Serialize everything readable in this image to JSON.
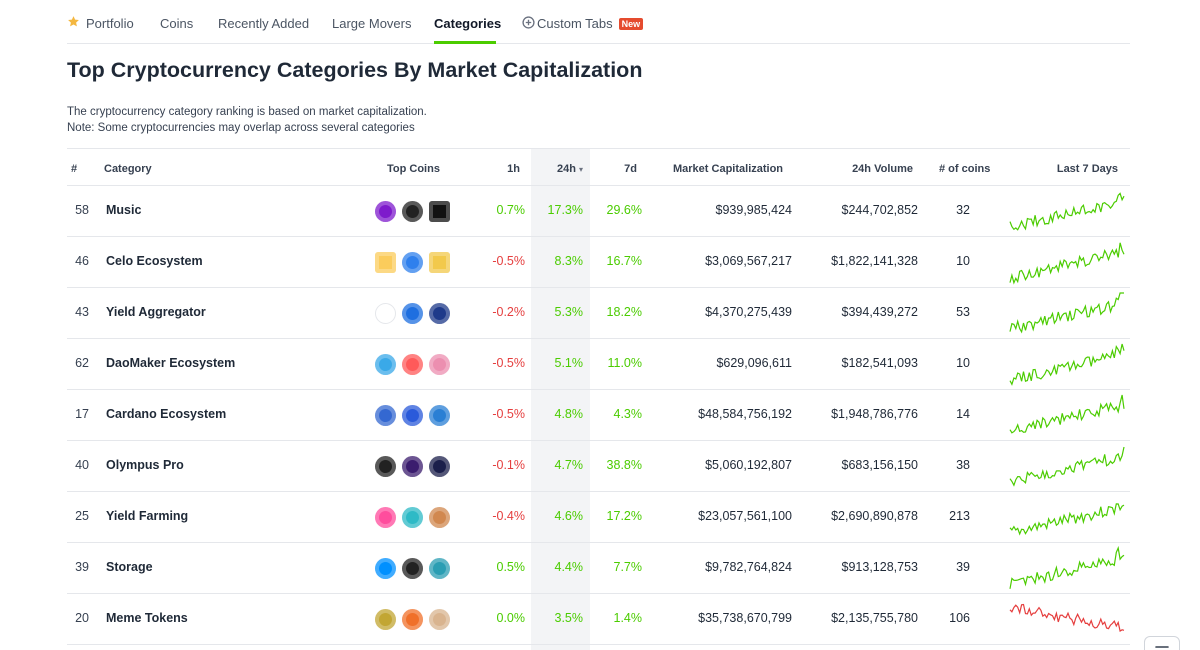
{
  "tabs": [
    {
      "label": "Portfolio",
      "icon": "star-icon"
    },
    {
      "label": "Coins"
    },
    {
      "label": "Recently Added"
    },
    {
      "label": "Large Movers"
    },
    {
      "label": "Categories",
      "active": true
    },
    {
      "label": "Custom Tabs",
      "icon": "plus-circle-icon",
      "badge": "New"
    }
  ],
  "page": {
    "title": "Top Cryptocurrency Categories By Market Capitalization",
    "description_line1": "The cryptocurrency category ranking is based on market capitalization.",
    "description_line2": "Note: Some cryptocurrencies may overlap across several categories"
  },
  "table": {
    "headers": {
      "rank": "#",
      "category": "Category",
      "top_coins": "Top Coins",
      "h1": "1h",
      "h24": "24h",
      "d7": "7d",
      "market_cap": "Market Capitalization",
      "volume": "24h Volume",
      "num_coins": "# of coins",
      "last7": "Last 7 Days"
    },
    "rows": [
      {
        "rank": "58",
        "category": "Music",
        "h1": "0.7%",
        "h24": "17.3%",
        "d7": "29.6%",
        "market_cap": "$939,985,424",
        "volume": "$244,702,852",
        "num_coins": "32",
        "trend": "up"
      },
      {
        "rank": "46",
        "category": "Celo Ecosystem",
        "h1": "-0.5%",
        "h24": "8.3%",
        "d7": "16.7%",
        "market_cap": "$3,069,567,217",
        "volume": "$1,822,141,328",
        "num_coins": "10",
        "trend": "up"
      },
      {
        "rank": "43",
        "category": "Yield Aggregator",
        "h1": "-0.2%",
        "h24": "5.3%",
        "d7": "18.2%",
        "market_cap": "$4,370,275,439",
        "volume": "$394,439,272",
        "num_coins": "53",
        "trend": "up"
      },
      {
        "rank": "62",
        "category": "DaoMaker Ecosystem",
        "h1": "-0.5%",
        "h24": "5.1%",
        "d7": "11.0%",
        "market_cap": "$629,096,611",
        "volume": "$182,541,093",
        "num_coins": "10",
        "trend": "up"
      },
      {
        "rank": "17",
        "category": "Cardano Ecosystem",
        "h1": "-0.5%",
        "h24": "4.8%",
        "d7": "4.3%",
        "market_cap": "$48,584,756,192",
        "volume": "$1,948,786,776",
        "num_coins": "14",
        "trend": "up"
      },
      {
        "rank": "40",
        "category": "Olympus Pro",
        "h1": "-0.1%",
        "h24": "4.7%",
        "d7": "38.8%",
        "market_cap": "$5,060,192,807",
        "volume": "$683,156,150",
        "num_coins": "38",
        "trend": "up"
      },
      {
        "rank": "25",
        "category": "Yield Farming",
        "h1": "-0.4%",
        "h24": "4.6%",
        "d7": "17.2%",
        "market_cap": "$23,057,561,100",
        "volume": "$2,690,890,878",
        "num_coins": "213",
        "trend": "up"
      },
      {
        "rank": "39",
        "category": "Storage",
        "h1": "0.5%",
        "h24": "4.4%",
        "d7": "7.7%",
        "market_cap": "$9,782,764,824",
        "volume": "$913,128,753",
        "num_coins": "39",
        "trend": "up"
      },
      {
        "rank": "20",
        "category": "Meme Tokens",
        "h1": "0.0%",
        "h24": "3.5%",
        "d7": "1.4%",
        "market_cap": "$35,738,670,799",
        "volume": "$2,135,755,780",
        "num_coins": "106",
        "trend": "down"
      }
    ],
    "coin_icons": [
      [
        {
          "name": "audius-icon",
          "color": "#7e1bcc"
        },
        {
          "name": "dark-coin-icon",
          "color": "#222222"
        },
        {
          "name": "chromia-icon",
          "color": "#111111"
        }
      ],
      [
        {
          "name": "celo-coin-icon",
          "color": "#fbcc5c"
        },
        {
          "name": "blue-hex-coin-icon",
          "color": "#2f80ed"
        },
        {
          "name": "yellow-square-coin-icon",
          "color": "#f2c94c"
        }
      ],
      [
        {
          "name": "curve-icon",
          "color": "#ffffff"
        },
        {
          "name": "yearn-icon",
          "color": "#1e6fe0"
        },
        {
          "name": "alpha-icon",
          "color": "#1e3a8a"
        }
      ],
      [
        {
          "name": "daomaker-icon",
          "color": "#3aa9e8"
        },
        {
          "name": "gradient-ring-coin-icon",
          "color": "#ff5a5a"
        },
        {
          "name": "flower-coin-icon",
          "color": "#ec8fb0"
        }
      ],
      [
        {
          "name": "cardano-icon",
          "color": "#3468d1"
        },
        {
          "name": "chainlink-icon",
          "color": "#2a5ada"
        },
        {
          "name": "wing-coin-icon",
          "color": "#2a7fd4"
        }
      ],
      [
        {
          "name": "olympus-icon",
          "color": "#222222"
        },
        {
          "name": "dotted-purple-coin-icon",
          "color": "#3b1d6e"
        },
        {
          "name": "rocket-coin-icon",
          "color": "#1b1f4b"
        }
      ],
      [
        {
          "name": "pink-coin-icon",
          "color": "#ff4d9d"
        },
        {
          "name": "aave-icon",
          "color": "#2ebac6"
        },
        {
          "name": "pancakeswap-icon",
          "color": "#d1884f"
        }
      ],
      [
        {
          "name": "filecoin-icon",
          "color": "#0090ff"
        },
        {
          "name": "arweave-icon",
          "color": "#222222"
        },
        {
          "name": "stacks-coin-icon",
          "color": "#2b9eb3"
        }
      ],
      [
        {
          "name": "dogecoin-icon",
          "color": "#c2a633"
        },
        {
          "name": "shiba-icon",
          "color": "#f0702a"
        },
        {
          "name": "dog-coin-icon",
          "color": "#d9b48f"
        }
      ]
    ]
  },
  "colors": {
    "positive": "#4bcc00",
    "negative": "#e53e3e",
    "accent": "#4bcc00",
    "badge": "#e54b2e"
  }
}
